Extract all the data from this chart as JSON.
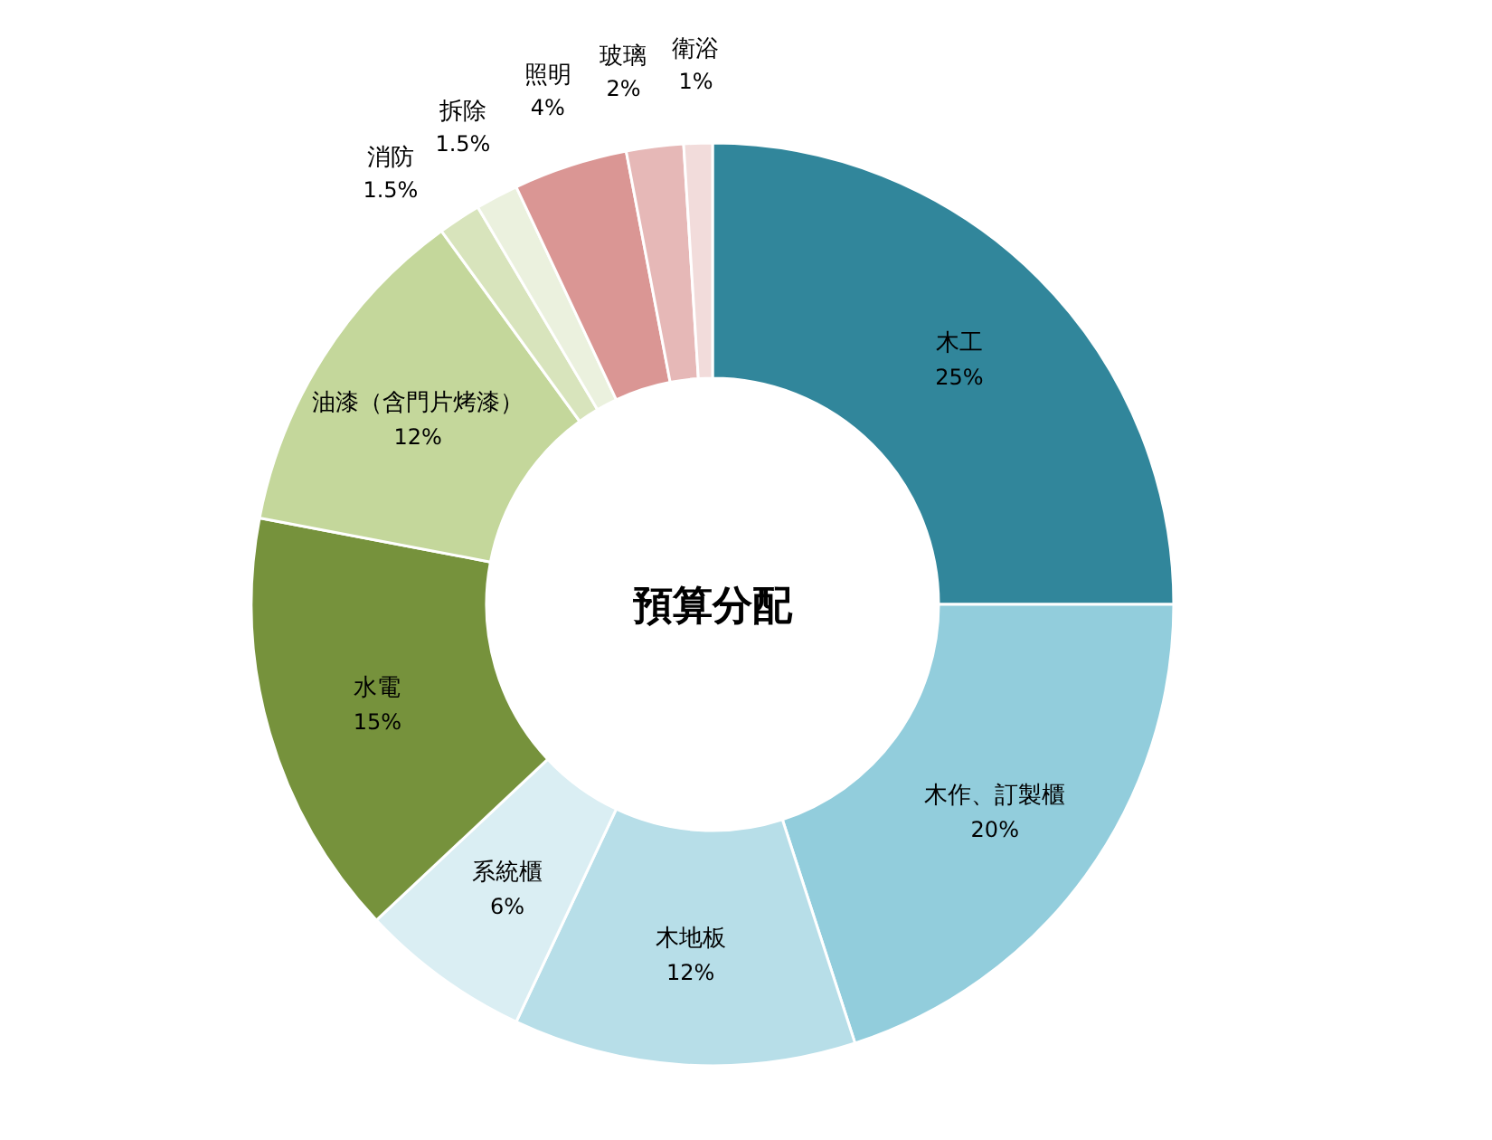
{
  "chart_data": {
    "type": "donut",
    "title": "預算分配",
    "categories": [
      "木工",
      "木作、訂製櫃",
      "木地板",
      "系統櫃",
      "水電",
      "油漆（含門片烤漆）",
      "消防",
      "拆除",
      "照明",
      "玻璃",
      "衛浴"
    ],
    "values": [
      25,
      20,
      12,
      6,
      15,
      12,
      1.5,
      1.5,
      4,
      2,
      1
    ],
    "value_labels": [
      "25%",
      "20%",
      "12%",
      "6%",
      "15%",
      "12%",
      "1.5%",
      "1.5%",
      "4%",
      "2%",
      "1%"
    ],
    "colors": [
      "#31869b",
      "#92cddc",
      "#b7dee8",
      "#daeef3",
      "#76923c",
      "#c4d79b",
      "#d8e4bc",
      "#ebf1de",
      "#da9694",
      "#e6b8b7",
      "#f2dcdb"
    ]
  }
}
